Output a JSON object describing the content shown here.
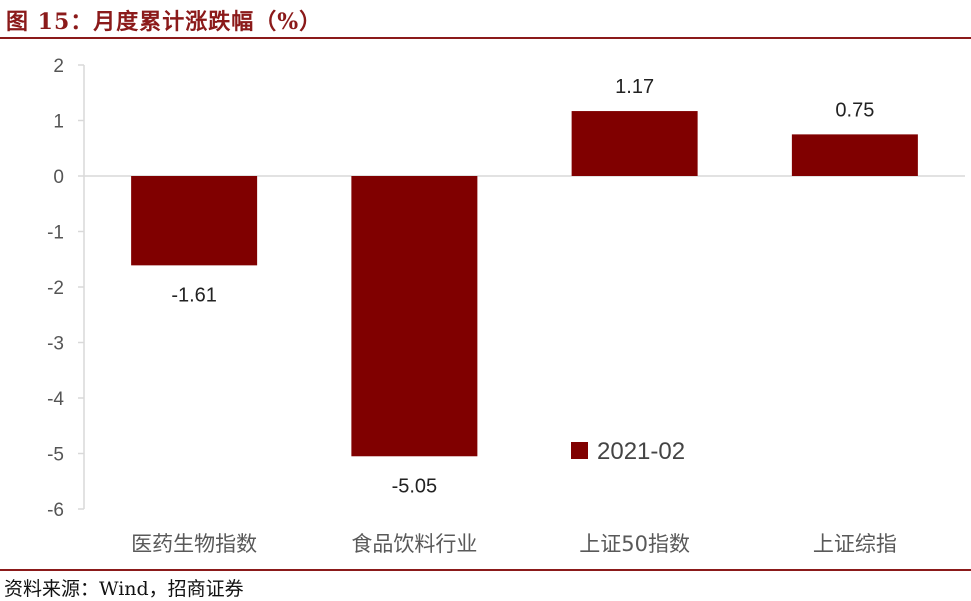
{
  "header": {
    "title": "图 15：月度累计涨跌幅（%）"
  },
  "footer": {
    "source": "资料来源：Wind，招商证券"
  },
  "colors": {
    "bar": "#800000",
    "axis": "#d9d9d9",
    "accent": "#8b1a1a"
  },
  "chart_data": {
    "type": "bar",
    "categories": [
      "医药生物指数",
      "食品饮料行业",
      "上证50指数",
      "上证综指"
    ],
    "series": [
      {
        "name": "2021-02",
        "values": [
          -1.61,
          -5.05,
          1.17,
          0.75
        ]
      }
    ],
    "data_labels": [
      "-1.61",
      "-5.05",
      "1.17",
      "0.75"
    ],
    "yticks": [
      "2",
      "1",
      "0",
      "-1",
      "-2",
      "-3",
      "-4",
      "-5",
      "-6"
    ],
    "ylim": [
      -6,
      2
    ],
    "grid": false,
    "legend": "inside-bottom-right"
  }
}
